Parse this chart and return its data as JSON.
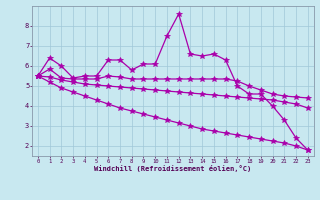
{
  "x": [
    0,
    1,
    2,
    3,
    4,
    5,
    6,
    7,
    8,
    9,
    10,
    11,
    12,
    13,
    14,
    15,
    16,
    17,
    18,
    19,
    20,
    21,
    22,
    23
  ],
  "line1": [
    5.5,
    6.4,
    6.0,
    5.4,
    5.5,
    5.5,
    6.3,
    6.3,
    5.8,
    6.1,
    6.1,
    7.5,
    8.6,
    6.6,
    6.5,
    6.6,
    6.3,
    5.0,
    4.6,
    4.6,
    4.0,
    3.3,
    2.4,
    1.8
  ],
  "line2": [
    5.5,
    5.85,
    5.4,
    5.35,
    5.35,
    5.35,
    5.5,
    5.45,
    5.35,
    5.35,
    5.35,
    5.35,
    5.35,
    5.35,
    5.35,
    5.35,
    5.35,
    5.25,
    5.0,
    4.8,
    4.6,
    4.5,
    4.45,
    4.4
  ],
  "line3": [
    5.5,
    5.45,
    5.3,
    5.2,
    5.1,
    5.05,
    5.0,
    4.95,
    4.9,
    4.85,
    4.8,
    4.75,
    4.7,
    4.65,
    4.6,
    4.55,
    4.5,
    4.45,
    4.4,
    4.35,
    4.3,
    4.2,
    4.1,
    3.9
  ],
  "line4": [
    5.5,
    5.2,
    4.9,
    4.7,
    4.5,
    4.3,
    4.1,
    3.9,
    3.75,
    3.6,
    3.45,
    3.3,
    3.15,
    3.0,
    2.85,
    2.75,
    2.65,
    2.55,
    2.45,
    2.35,
    2.25,
    2.15,
    2.0,
    1.8
  ],
  "color": "#aa00aa",
  "bg_color": "#c8e8f0",
  "grid_color": "#a0c8d8",
  "xlabel": "Windchill (Refroidissement éolien,°C)",
  "ylim": [
    1.5,
    9.0
  ],
  "xlim": [
    -0.5,
    23.5
  ],
  "yticks": [
    2,
    3,
    4,
    5,
    6,
    7,
    8
  ],
  "xticks": [
    0,
    1,
    2,
    3,
    4,
    5,
    6,
    7,
    8,
    9,
    10,
    11,
    12,
    13,
    14,
    15,
    16,
    17,
    18,
    19,
    20,
    21,
    22,
    23
  ]
}
